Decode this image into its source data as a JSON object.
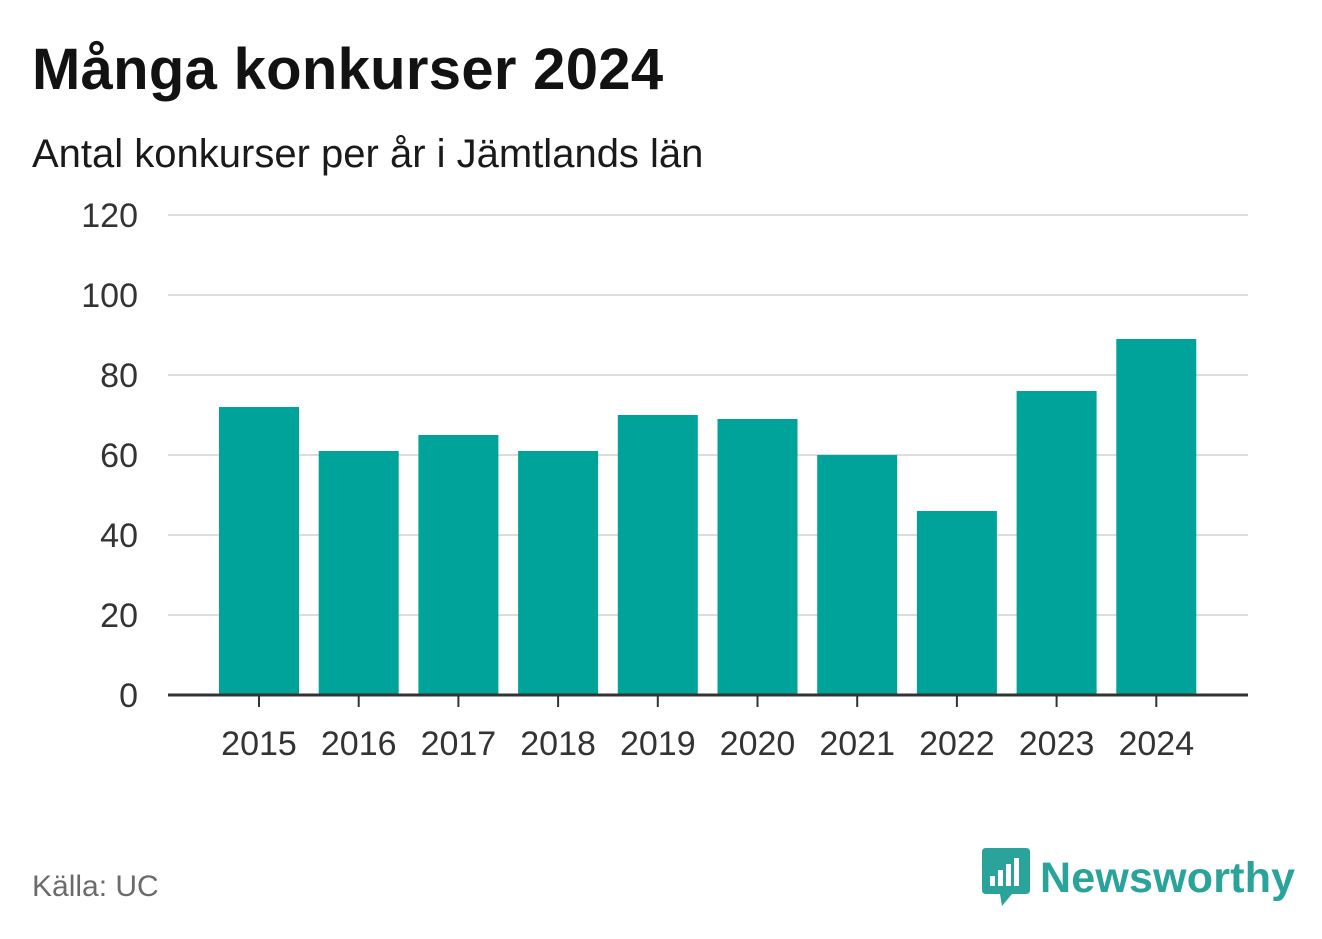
{
  "header": {
    "title": "Många konkurser 2024",
    "subtitle": "Antal konkurser per år i Jämtlands län"
  },
  "footer": {
    "source": "Källa: UC",
    "brand": "Newsworthy",
    "brand_icon": "bar-chart-speech-bubble-icon",
    "brand_color": "#2aa39a"
  },
  "chart_data": {
    "type": "bar",
    "categories": [
      "2015",
      "2016",
      "2017",
      "2018",
      "2019",
      "2020",
      "2021",
      "2022",
      "2023",
      "2024"
    ],
    "values": [
      72,
      61,
      65,
      61,
      70,
      69,
      60,
      46,
      76,
      89
    ],
    "title": "Många konkurser 2024",
    "subtitle": "Antal konkurser per år i Jämtlands län",
    "xlabel": "",
    "ylabel": "",
    "ylim": [
      0,
      120
    ],
    "yticks": [
      0,
      20,
      40,
      60,
      80,
      100,
      120
    ],
    "grid": true,
    "bar_color": "#00a39a"
  }
}
